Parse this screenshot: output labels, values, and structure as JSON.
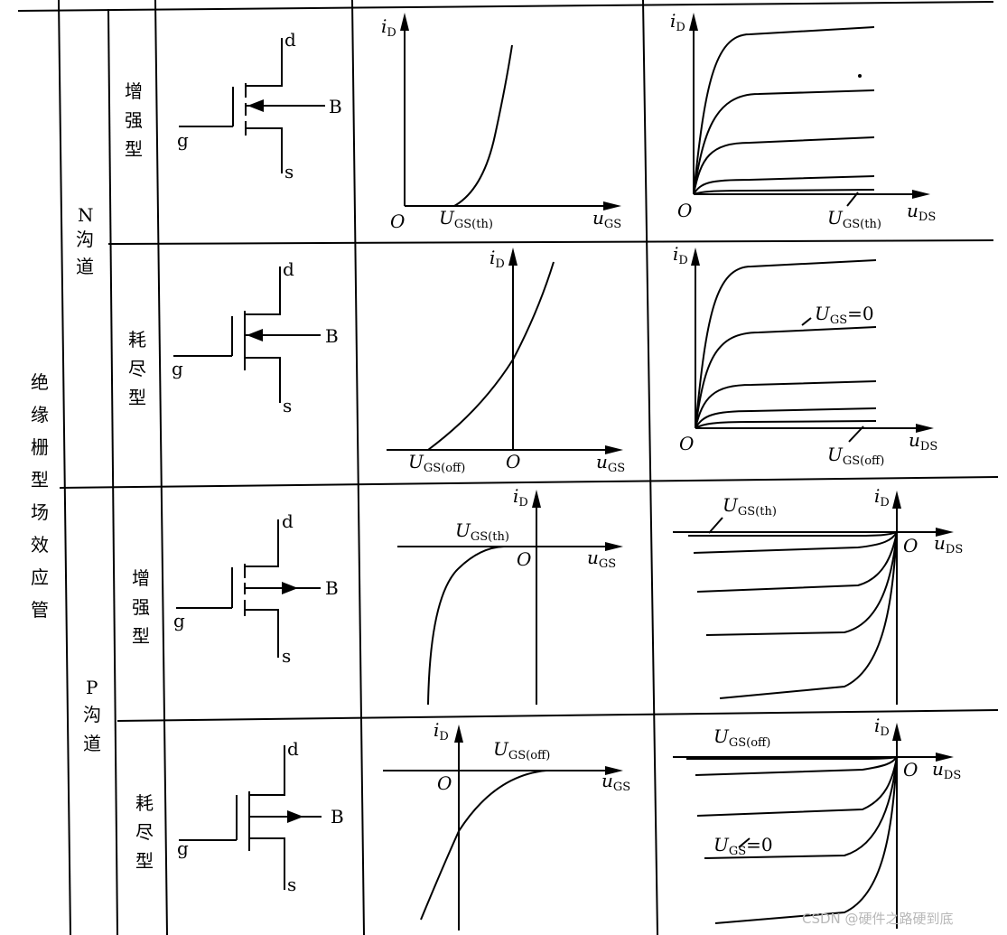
{
  "category": {
    "main": "绝缘栅型场效应管",
    "n_channel": {
      "letter": "N",
      "text": "沟道"
    },
    "p_channel": {
      "letter": "P",
      "text": "沟道"
    },
    "enhancement": "增强型",
    "depletion": "耗尽型"
  },
  "terminals": {
    "d": "d",
    "s": "s",
    "g": "g",
    "b": "B"
  },
  "axes": {
    "origin": "O",
    "iD": {
      "main": "i",
      "sub": "D"
    },
    "uGS": {
      "main": "u",
      "sub": "GS"
    },
    "uDS": {
      "main": "u",
      "sub": "DS"
    }
  },
  "params": {
    "ugs_th": {
      "main": "U",
      "sub": "GS(th)"
    },
    "ugs_off": {
      "main": "U",
      "sub": "GS(off)"
    },
    "ugs_zero": {
      "main": "U",
      "sub": "GS",
      "suffix": "=0"
    }
  },
  "watermark": "CSDN @硬件之路硬到底"
}
